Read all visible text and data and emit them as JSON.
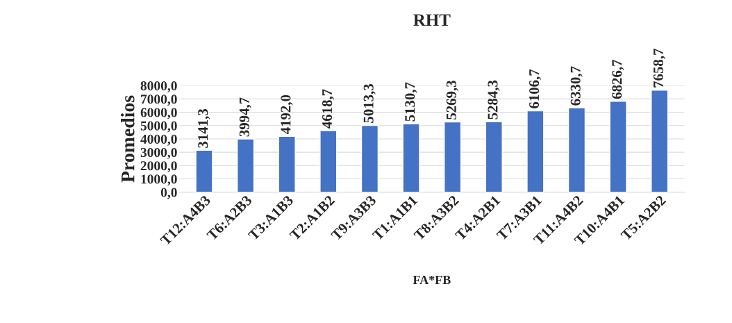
{
  "chart_data": {
    "type": "bar",
    "title": "RHT",
    "xlabel": "FA*FB",
    "ylabel": "Promedios",
    "categories": [
      "T12:A4B3",
      "T6:A2B3",
      "T3:A1B3",
      "T2:A1B2",
      "T9:A3B3",
      "T1:A1B1",
      "T8:A3B2",
      "T4:A2B1",
      "T7:A3B1",
      "T11:A4B2",
      "T10:A4B1",
      "T5:A2B2"
    ],
    "values": [
      3141.3,
      3994.7,
      4192.0,
      4618.7,
      5013.3,
      5130.7,
      5269.3,
      5284.3,
      6106.7,
      6330.7,
      6826.7,
      7658.7
    ],
    "value_labels": [
      "3141,3",
      "3994,7",
      "4192,0",
      "4618,7",
      "5013,3",
      "5130,7",
      "5269,3",
      "5284,3",
      "6106,7",
      "6330,7",
      "6826,7",
      "7658,7"
    ],
    "color": "#4472c4",
    "ylim": [
      0,
      8000
    ],
    "yticks": [
      {
        "value": 0,
        "label": "0,0"
      },
      {
        "value": 1000,
        "label": "1000,0"
      },
      {
        "value": 2000,
        "label": "2000,0"
      },
      {
        "value": 3000,
        "label": "3000,0"
      },
      {
        "value": 4000,
        "label": "4000,0"
      },
      {
        "value": 5000,
        "label": "5000,0"
      },
      {
        "value": 6000,
        "label": "6000,0"
      },
      {
        "value": 7000,
        "label": "7000,0"
      },
      {
        "value": 8000,
        "label": "8000,0"
      }
    ],
    "grid": "y",
    "legend": false
  }
}
